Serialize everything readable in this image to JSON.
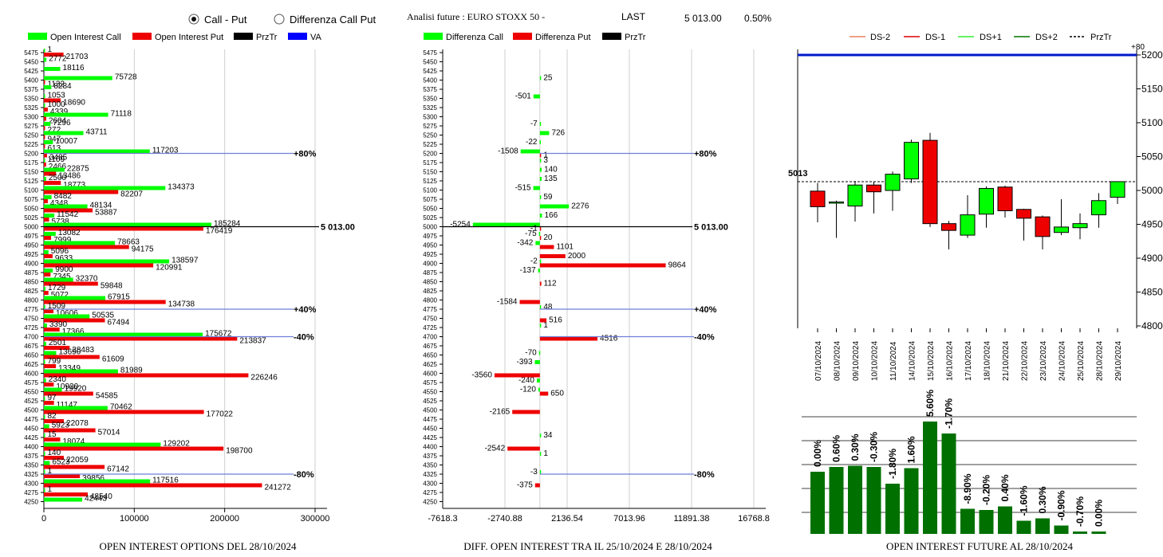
{
  "header": {
    "radio_call_put": "Call - Put",
    "radio_diff": "Differenza Call Put",
    "analysis_title": "Analisi future : EURO STOXX 50 -",
    "last_label": "LAST",
    "last_value": "5 013.00",
    "change": "0.50%"
  },
  "colors": {
    "call": "#00ff00",
    "put": "#ee0000",
    "przTr": "#000000",
    "va": "#0000ff",
    "hline": "#6f7fd7",
    "future_bar": "#007000"
  },
  "chart_data": [
    {
      "type": "bar",
      "title": "OPEN INTEREST OPTIONS DEL 28/10/2024",
      "orientation": "horizontal",
      "legend": [
        "Open Interest Call",
        "Open Interest Put",
        "PrzTr",
        "VA"
      ],
      "xlim": [
        0,
        300000
      ],
      "xticks": [
        "0",
        "100000",
        "200000",
        "300000"
      ],
      "strikes": [
        5475,
        5450,
        5425,
        5400,
        5375,
        5350,
        5325,
        5300,
        5275,
        5250,
        5225,
        5200,
        5175,
        5150,
        5125,
        5100,
        5075,
        5050,
        5025,
        5000,
        4975,
        4950,
        4925,
        4900,
        4875,
        4850,
        4825,
        4800,
        4775,
        4750,
        4725,
        4700,
        4675,
        4650,
        4625,
        4600,
        4575,
        4550,
        4525,
        4500,
        4475,
        4450,
        4425,
        4400,
        4375,
        4350,
        4325,
        4300,
        4275,
        4250
      ],
      "series": [
        {
          "name": "Open Interest Call",
          "values": [
            1,
            2772,
            18116,
            75728,
            8284,
            1053,
            1000,
            71118,
            7296,
            43711,
            10007,
            117203,
            1109,
            22875,
            2500,
            134373,
            8482,
            48134,
            11542,
            185284,
            13082,
            78663,
            5096,
            138597,
            9900,
            32370,
            1729,
            67915,
            1509,
            50535,
            3390,
            175672,
            2501,
            13690,
            799,
            81989,
            2340,
            19920,
            97,
            70462,
            82,
            5923,
            15,
            129202,
            140,
            6523,
            1,
            117516,
            1,
            42443
          ]
        },
        {
          "name": "Open Interest Put",
          "values": [
            21703,
            0,
            0,
            1132,
            0,
            18690,
            4339,
            2604,
            272,
            947,
            613,
            3485,
            2466,
            13486,
            18773,
            82207,
            4348,
            53887,
            5738,
            176419,
            7999,
            94175,
            9633,
            120991,
            7345,
            59848,
            5072,
            134738,
            10606,
            67494,
            17366,
            213837,
            28483,
            61609,
            13349,
            226246,
            10920,
            54585,
            11147,
            177022,
            22078,
            57014,
            18074,
            198700,
            22059,
            67142,
            39856,
            241272,
            48540,
            0
          ]
        }
      ],
      "va_levels": [
        {
          "strike": 5200,
          "label": "+80%"
        },
        {
          "strike": 4775,
          "label": "+40%"
        },
        {
          "strike": 4700,
          "label": "-40%"
        },
        {
          "strike": 4325,
          "label": "-80%"
        }
      ],
      "przTr": {
        "strike": 5000,
        "label": "5 013.00"
      }
    },
    {
      "type": "bar",
      "title": "DIFF. OPEN INTEREST TRA IL 25/10/2024 E 28/10/2024",
      "orientation": "horizontal",
      "legend": [
        "Differenza Call",
        "Differenza Put",
        "PrzTr"
      ],
      "xlim": [
        -7618.3,
        16768.8
      ],
      "xticks": [
        "-7618.3",
        "-2740.88",
        "2136.54",
        "7013.96",
        "11891.38",
        "16768.8"
      ],
      "call_diff": [
        {
          "strike": 5400,
          "value": 25
        },
        {
          "strike": 5350,
          "value": -501
        },
        {
          "strike": 5275,
          "value": -7
        },
        {
          "strike": 5250,
          "value": 726
        },
        {
          "strike": 5225,
          "value": -22
        },
        {
          "strike": 5200,
          "value": -1508
        },
        {
          "strike": 5175,
          "value": 3
        },
        {
          "strike": 5150,
          "value": 140
        },
        {
          "strike": 5125,
          "value": 135
        },
        {
          "strike": 5100,
          "value": -515
        },
        {
          "strike": 5075,
          "value": 59
        },
        {
          "strike": 5050,
          "value": 2276
        },
        {
          "strike": 5025,
          "value": 166
        },
        {
          "strike": 5000,
          "value": -5254
        },
        {
          "strike": 4975,
          "value": -75
        },
        {
          "strike": 4950,
          "value": -342
        },
        {
          "strike": 4900,
          "value": -2
        },
        {
          "strike": 4875,
          "value": -137
        },
        {
          "strike": 4775,
          "value": 48
        },
        {
          "strike": 4725,
          "value": 1
        },
        {
          "strike": 4650,
          "value": -70
        },
        {
          "strike": 4625,
          "value": -393
        },
        {
          "strike": 4575,
          "value": -240
        },
        {
          "strike": 4550,
          "value": -120
        },
        {
          "strike": 4425,
          "value": 34
        },
        {
          "strike": 4375,
          "value": 1
        },
        {
          "strike": 4325,
          "value": -3
        }
      ],
      "put_diff": [
        {
          "strike": 5200,
          "value": 1
        },
        {
          "strike": 5000,
          "value": -1
        },
        {
          "strike": 4975,
          "value": 20
        },
        {
          "strike": 4950,
          "value": 1101
        },
        {
          "strike": 4925,
          "value": 2000
        },
        {
          "strike": 4900,
          "value": 9864
        },
        {
          "strike": 4850,
          "value": 112
        },
        {
          "strike": 4800,
          "value": -1584
        },
        {
          "strike": 4750,
          "value": 516
        },
        {
          "strike": 4700,
          "value": 4516
        },
        {
          "strike": 4600,
          "value": -3560
        },
        {
          "strike": 4550,
          "value": 650
        },
        {
          "strike": 4500,
          "value": -2165
        },
        {
          "strike": 4400,
          "value": -2542
        },
        {
          "strike": 4300,
          "value": -375
        }
      ],
      "va_levels": [
        {
          "strike": 5200,
          "label": "+80%"
        },
        {
          "strike": 4775,
          "label": "+40%"
        },
        {
          "strike": 4700,
          "label": "-40%"
        },
        {
          "strike": 4325,
          "label": "-80%"
        }
      ],
      "przTr": {
        "strike": 5000,
        "label": "5 013.00"
      }
    },
    {
      "type": "candlestick",
      "legend": [
        "DS-2",
        "DS-1",
        "DS+1",
        "DS+2",
        "PrzTr"
      ],
      "ylim": [
        4800,
        5200
      ],
      "yticks": [
        "5200",
        "5150",
        "5100",
        "5050",
        "5000",
        "4950",
        "4900",
        "4850",
        "4800"
      ],
      "top_line": {
        "value": 5200,
        "label": "+80"
      },
      "last": {
        "value": 5013,
        "label": "5013"
      },
      "candles": [
        {
          "date": "07/10/2024",
          "open": 4999,
          "high": 5011,
          "low": 4953,
          "close": 4976
        },
        {
          "date": "08/10/2024",
          "open": 4983,
          "high": 4985,
          "low": 4930,
          "close": 4983
        },
        {
          "date": "09/10/2024",
          "open": 4977,
          "high": 5014,
          "low": 4954,
          "close": 5008
        },
        {
          "date": "10/10/2024",
          "open": 5008,
          "high": 5013,
          "low": 4966,
          "close": 4998
        },
        {
          "date": "11/10/2024",
          "open": 5000,
          "high": 5028,
          "low": 4970,
          "close": 5024
        },
        {
          "date": "14/10/2024",
          "open": 5017,
          "high": 5075,
          "low": 5011,
          "close": 5071
        },
        {
          "date": "15/10/2024",
          "open": 5074,
          "high": 5085,
          "low": 4946,
          "close": 4951
        },
        {
          "date": "16/10/2024",
          "open": 4951,
          "high": 4955,
          "low": 4913,
          "close": 4941
        },
        {
          "date": "17/10/2024",
          "open": 4934,
          "high": 4993,
          "low": 4930,
          "close": 4964
        },
        {
          "date": "18/10/2024",
          "open": 4965,
          "high": 5006,
          "low": 4945,
          "close": 5003
        },
        {
          "date": "21/10/2024",
          "open": 5005,
          "high": 5007,
          "low": 4960,
          "close": 4970
        },
        {
          "date": "22/10/2024",
          "open": 4972,
          "high": 4973,
          "low": 4926,
          "close": 4959
        },
        {
          "date": "23/10/2024",
          "open": 4961,
          "high": 4963,
          "low": 4913,
          "close": 4932
        },
        {
          "date": "24/10/2024",
          "open": 4938,
          "high": 4987,
          "low": 4934,
          "close": 4946
        },
        {
          "date": "25/10/2024",
          "open": 4945,
          "high": 4966,
          "low": 4928,
          "close": 4951
        },
        {
          "date": "28/10/2024",
          "open": 4964,
          "high": 4996,
          "low": 4945,
          "close": 4985
        },
        {
          "date": "29/10/2024",
          "open": 4990,
          "high": 5013,
          "low": 4980,
          "close": 5013
        }
      ]
    },
    {
      "type": "bar",
      "title": "OPEN INTEREST FUTURE AL 28/10/2024",
      "values": [
        0.52,
        0.56,
        0.57,
        0.56,
        0.42,
        0.55,
        0.94,
        0.84,
        0.21,
        0.2,
        0.23,
        0.11,
        0.13,
        0.07,
        0.02,
        0.02
      ],
      "labels": [
        "0.00%",
        "0.60%",
        "0.30%",
        "-0.30%",
        "-1.80%",
        "1.60%",
        "5.60%",
        "-1.70%",
        "-8.90%",
        "-0.20%",
        "0.40%",
        "-1.60%",
        "0.30%",
        "-0.90%",
        "-0.70%",
        "0.00%"
      ]
    }
  ]
}
